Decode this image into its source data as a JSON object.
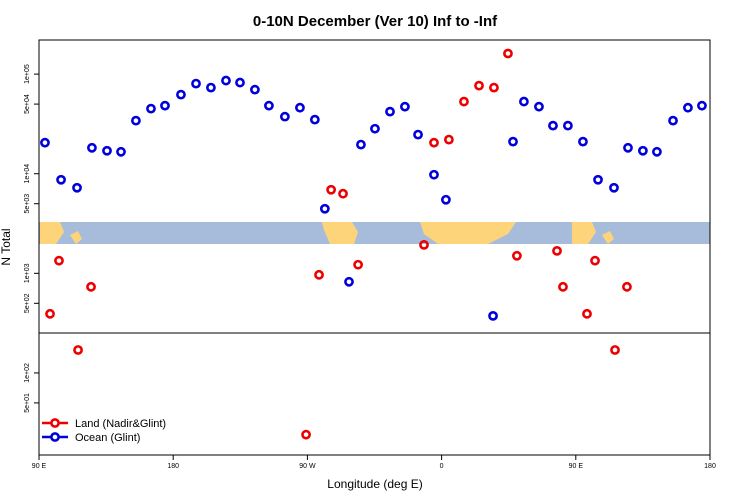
{
  "chart_data": {
    "type": "scatter",
    "title": "0-10N December (Ver 10)   Inf to -Inf",
    "x_label": "Longitude (deg E)",
    "y_label": "N Total",
    "log_y": true,
    "xlim": [
      90,
      540
    ],
    "xticks": [
      {
        "value": 90,
        "label": "90 E"
      },
      180,
      {
        "value": 270,
        "label": "90 W"
      },
      {
        "value": 360,
        "label": "0"
      },
      {
        "value": 450,
        "label": "90 E"
      },
      {
        "value": 540,
        "label": "180"
      }
    ],
    "ylim": [
      15,
      220000
    ],
    "yticks": [
      {
        "value": 50,
        "label": "5e+01"
      },
      {
        "value": 100,
        "label": "1e+02"
      },
      {
        "value": 500,
        "label": "5e+02"
      },
      {
        "value": 1000,
        "label": "1e+03"
      },
      {
        "value": 5000,
        "label": "5e+03"
      },
      {
        "value": 10000,
        "label": "1e+04"
      },
      {
        "value": 50000,
        "label": "5e+04"
      },
      {
        "value": 100000,
        "label": "1e+05"
      }
    ],
    "legend": "bottom-left",
    "series": [
      {
        "name": "Land (Nadir&Glint)",
        "color": "#ee0000",
        "x": [
          97.4,
          103.4,
          116.2,
          124.9,
          269.1,
          277.8,
          285.9,
          293.9,
          304.0,
          348.2,
          354.9,
          364.9,
          375.0,
          385.1,
          395.1,
          404.5,
          410.5,
          437.4,
          441.4,
          457.5,
          462.9,
          476.3,
          484.3
        ],
        "values": [
          392,
          1340,
          170,
          732,
          24,
          966,
          6900,
          6300,
          1220,
          1930,
          20500,
          22000,
          53000,
          76600,
          73200,
          161000,
          1500,
          1680,
          732,
          392,
          1340,
          170,
          732
        ]
      },
      {
        "name": "Ocean (Glint)",
        "color": "#0000dd",
        "x": [
          94.0,
          104.8,
          115.5,
          125.5,
          135.6,
          145.0,
          155.0,
          165.1,
          174.5,
          185.2,
          195.3,
          205.3,
          215.4,
          224.8,
          234.8,
          244.2,
          254.9,
          265.0,
          275.0,
          281.7,
          297.9,
          305.9,
          315.3,
          325.4,
          335.4,
          344.2,
          354.9,
          362.9,
          394.5,
          407.9,
          415.2,
          425.3,
          434.7,
          444.7,
          454.8,
          464.9,
          475.6,
          485.0,
          495.0,
          504.4,
          515.2,
          525.2,
          534.6
        ],
        "values": [
          20500,
          8700,
          7230,
          18200,
          17000,
          16600,
          34100,
          45000,
          48200,
          62200,
          80300,
          73200,
          86100,
          82200,
          69800,
          48200,
          37400,
          46000,
          34900,
          4450,
          822,
          19600,
          28300,
          42000,
          47100,
          24700,
          9770,
          5480,
          374,
          21000,
          53000,
          47100,
          30400,
          30400,
          21000,
          8700,
          7230,
          18200,
          17000,
          16600,
          34100,
          46000,
          48200
        ]
      }
    ]
  }
}
